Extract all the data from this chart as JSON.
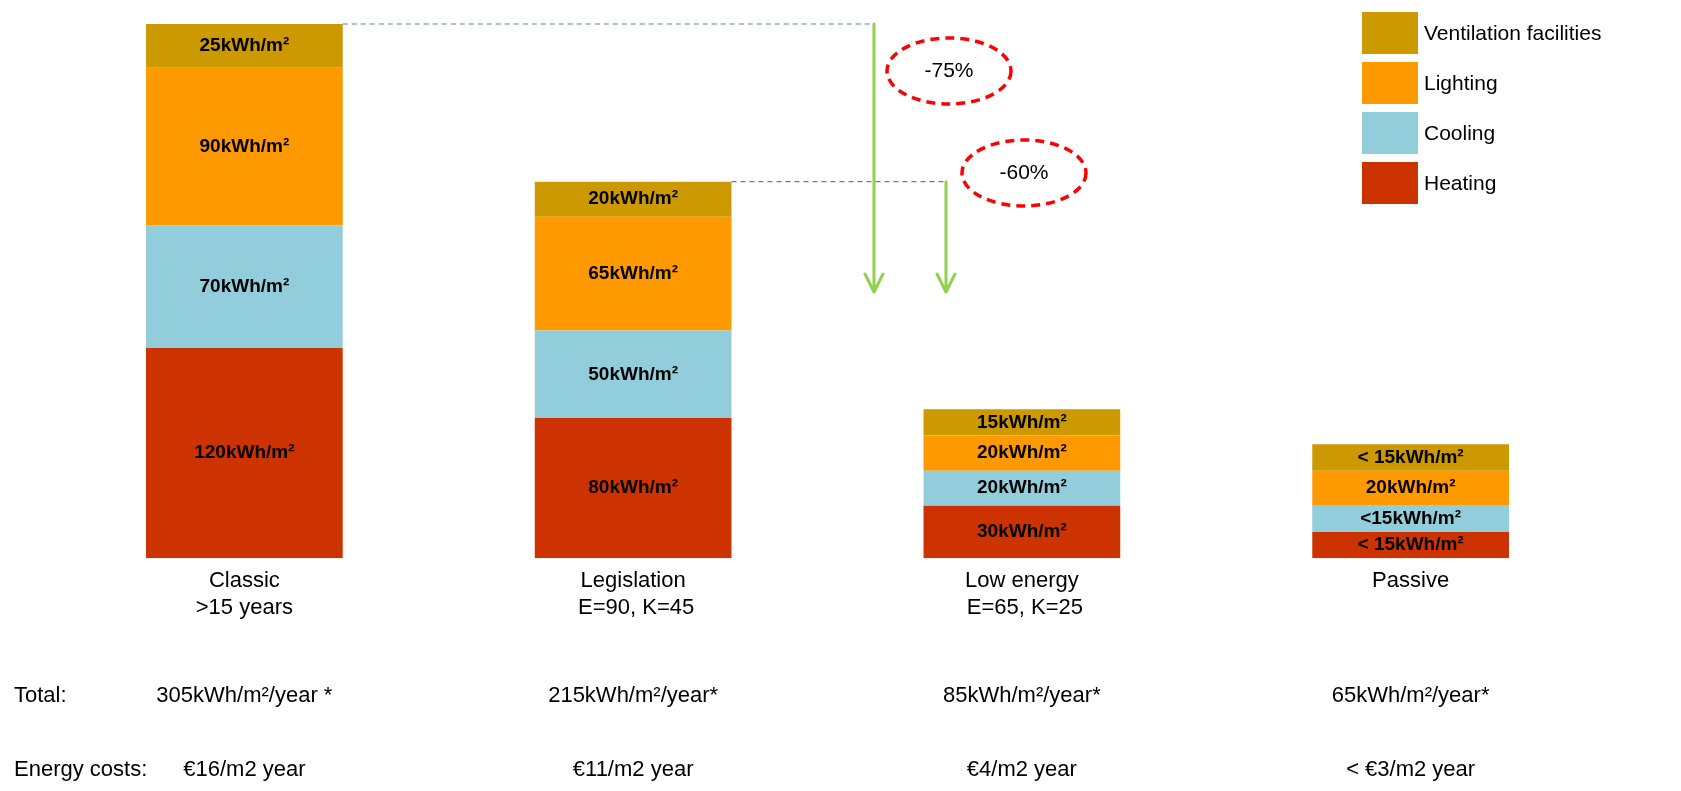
{
  "chart_data": {
    "type": "bar",
    "stacked": true,
    "legend": "top right",
    "data_labels": false,
    "categories": [
      "Classic\n>15 years",
      "Legislation\n E=90, K=45",
      "Low energy\n E=65, K=25",
      "Passive"
    ],
    "series": [
      {
        "name": "Heating",
        "color": "#cc3300",
        "values": [
          120,
          80,
          30,
          15
        ],
        "value_labels": [
          "120kWh/m²",
          "80kWh/m²",
          "30kWh/m²",
          "< 15kWh/m²"
        ]
      },
      {
        "name": "Cooling",
        "color": "#92cddc",
        "values": [
          70,
          50,
          20,
          15
        ],
        "value_labels": [
          "70kWh/m²",
          "50kWh/m²",
          "20kWh/m²",
          "<15kWh/m²"
        ]
      },
      {
        "name": "Lighting",
        "color": "#ff9900",
        "values": [
          90,
          65,
          20,
          20
        ],
        "value_labels": [
          "90kWh/m²",
          "65kWh/m²",
          "20kWh/m²",
          "20kWh/m²"
        ]
      },
      {
        "name": "Ventilation facilities",
        "color": "#cc9900",
        "values": [
          25,
          20,
          15,
          15
        ],
        "value_labels": [
          "25kWh/m²",
          "20kWh/m²",
          "15kWh/m²",
          "< 15kWh/m²"
        ]
      }
    ],
    "annotations": [
      "-75%",
      "-60%",
      "Total:",
      "Energy costs:",
      "305kWh/m²/year *",
      "215kWh/m²/year*",
      "85kWh/m²/year*",
      "65kWh/m²/year*",
      "€16/m2 year",
      "€11/m2 year",
      "€4/m2 year",
      "< €3/m2 year"
    ]
  }
}
